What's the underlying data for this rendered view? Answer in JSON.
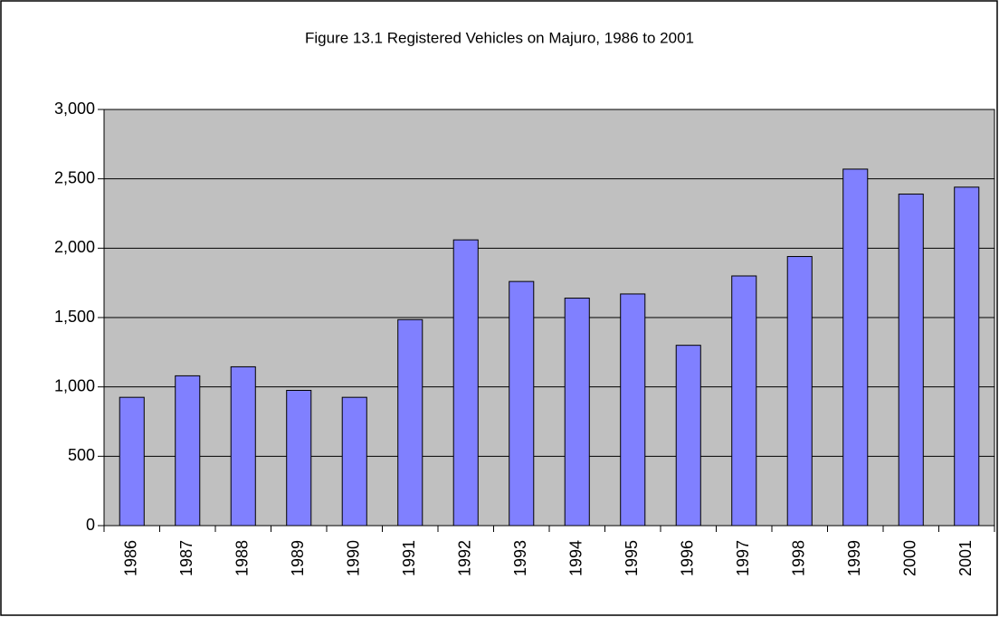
{
  "chart_data": {
    "type": "bar",
    "title": "Figure 13.1 Registered Vehicles on Majuro, 1986 to 2001",
    "categories": [
      "1986",
      "1987",
      "1988",
      "1989",
      "1990",
      "1991",
      "1992",
      "1993",
      "1994",
      "1995",
      "1996",
      "1997",
      "1998",
      "1999",
      "2000",
      "2001"
    ],
    "values": [
      925,
      1080,
      1145,
      975,
      925,
      1485,
      2060,
      1760,
      1640,
      1670,
      1300,
      1800,
      1940,
      2570,
      2390,
      2440
    ],
    "color": "#8080ff",
    "ylim": [
      0,
      3000
    ],
    "yticks": [
      0,
      500,
      {
        "value": 1000,
        "label": "1,000"
      },
      {
        "value": 1500,
        "label": "1,500"
      },
      {
        "value": 2000,
        "label": "2,000"
      },
      {
        "value": 2500,
        "label": "2,500"
      },
      {
        "value": 3000,
        "label": "3,000"
      }
    ],
    "grid": true
  }
}
